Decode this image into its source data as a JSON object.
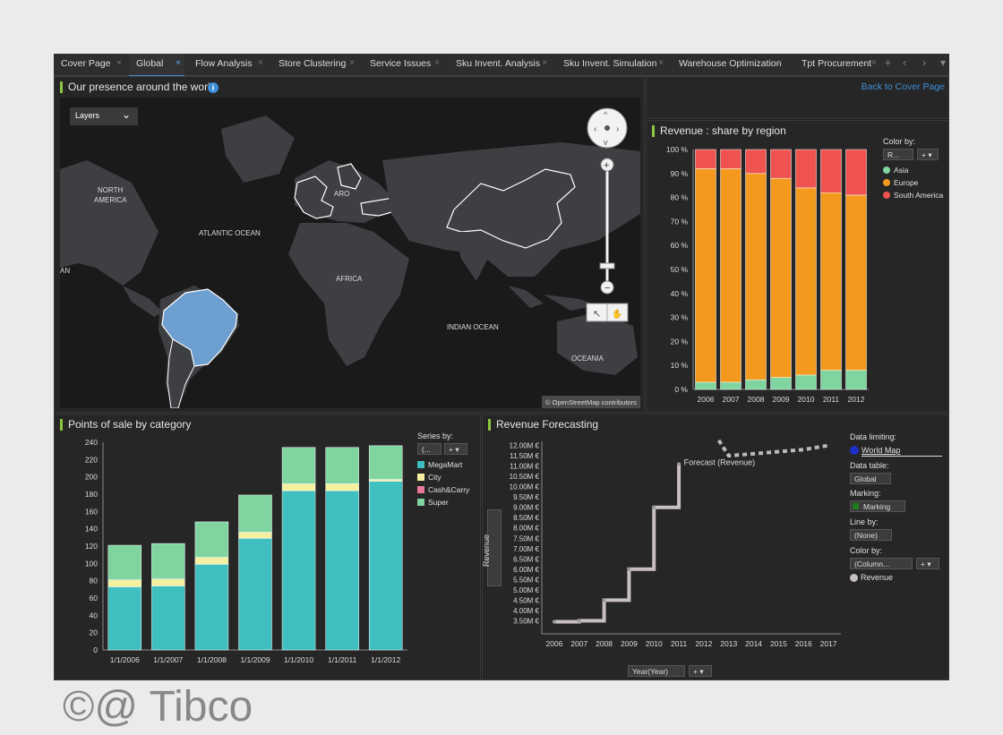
{
  "tabs": [
    {
      "label": "Cover Page",
      "x": 0,
      "w": 80
    },
    {
      "label": "Global",
      "x": 84,
      "w": 62,
      "active": true
    },
    {
      "label": "Flow Analysis",
      "x": 150,
      "w": 88
    },
    {
      "label": "Store Clustering",
      "x": 243,
      "w": 97
    },
    {
      "label": "Service Issues",
      "x": 345,
      "w": 90
    },
    {
      "label": "Sku Invent. Analysis",
      "x": 441,
      "w": 114
    },
    {
      "label": "Sku Invent. Simulation",
      "x": 561,
      "w": 124
    },
    {
      "label": "Warehouse Optimization",
      "x": 690,
      "w": 128
    },
    {
      "label": "Tpt Procurement",
      "x": 827,
      "w": 96
    }
  ],
  "map": {
    "title": "Our presence around the world",
    "layers_label": "Layers",
    "labels": [
      "NORTH",
      "AMERICA",
      "ATLANTIC OCEAN",
      "AFRICA",
      "INDIAN OCEAN",
      "OCEANIA",
      "ARO",
      "AN"
    ],
    "attribution": "© OpenStreetMap contributors",
    "colors": {
      "ocean": "#1a1a1a",
      "land": "#3d3f42",
      "highlight": "#6d9fd0"
    }
  },
  "back_link": "Back to Cover Page",
  "revenue_share": {
    "title": "Revenue : share by region",
    "color_by_label": "Color by:",
    "color_by_value": "R...",
    "legend": [
      {
        "name": "Asia",
        "color": "#7fd4a0"
      },
      {
        "name": "Europe",
        "color": "#f39a1e"
      },
      {
        "name": "South America",
        "color": "#ef5350"
      }
    ]
  },
  "pos": {
    "title": "Points of sale by category",
    "series_by_label": "Series by:",
    "series_by_value": "(...",
    "legend": [
      {
        "name": "MegaMart",
        "color": "#3fbfbf"
      },
      {
        "name": "City",
        "color": "#f5f0a0"
      },
      {
        "name": "Cash&Carry",
        "color": "#e8789a"
      },
      {
        "name": "Super",
        "color": "#7fd4a0"
      }
    ]
  },
  "forecast": {
    "title": "Revenue Forecasting",
    "y_axis_title": "Revenue",
    "x_selector": "Year(Year)",
    "forecast_label": "Forecast (Revenue)",
    "data_limiting_label": "Data limiting:",
    "data_limiting_value": "World Map",
    "data_table_label": "Data table:",
    "data_table_value": "Global",
    "marking_label": "Marking:",
    "marking_value": "Marking",
    "line_by_label": "Line by:",
    "line_by_value": "(None)",
    "color_by_label": "Color by:",
    "color_by_value": "(Column...",
    "legend_item": "Revenue"
  },
  "watermark": "©@ Tibco",
  "chart_data": [
    {
      "type": "bar",
      "title": "Revenue : share by region",
      "categories": [
        "2006",
        "2007",
        "2008",
        "2009",
        "2010",
        "2011",
        "2012"
      ],
      "y_ticks": [
        "0 %",
        "10 %",
        "20 %",
        "30 %",
        "40 %",
        "50 %",
        "60 %",
        "70 %",
        "80 %",
        "90 %",
        "100 %"
      ],
      "ylim": [
        0,
        100
      ],
      "stacked": true,
      "series": [
        {
          "name": "Asia",
          "values": [
            3,
            3,
            4,
            5,
            6,
            8,
            8
          ]
        },
        {
          "name": "Europe",
          "values": [
            89,
            89,
            86,
            83,
            78,
            74,
            73
          ]
        },
        {
          "name": "South America",
          "values": [
            8,
            8,
            10,
            12,
            16,
            18,
            19
          ]
        }
      ]
    },
    {
      "type": "bar",
      "title": "Points of sale by category",
      "categories": [
        "1/1/2006",
        "1/1/2007",
        "1/1/2008",
        "1/1/2009",
        "1/1/2010",
        "1/1/2011",
        "1/1/2012"
      ],
      "y_ticks": [
        "0",
        "20",
        "40",
        "60",
        "80",
        "100",
        "120",
        "140",
        "160",
        "180",
        "200",
        "220",
        "240"
      ],
      "ylim": [
        0,
        240
      ],
      "stacked": true,
      "series": [
        {
          "name": "MegaMart",
          "values": [
            73,
            74,
            99,
            129,
            184,
            184,
            195
          ]
        },
        {
          "name": "City",
          "values": [
            8,
            8,
            8,
            7,
            8,
            8,
            2
          ]
        },
        {
          "name": "Super",
          "values": [
            40,
            41,
            41,
            43,
            42,
            42,
            39
          ]
        }
      ]
    },
    {
      "type": "line",
      "title": "Revenue Forecasting",
      "x": [
        "2006",
        "2007",
        "2008",
        "2009",
        "2010",
        "2011",
        "2012",
        "2013",
        "2014",
        "2015",
        "2016",
        "2017"
      ],
      "y_ticks": [
        "3.50M €",
        "4.00M €",
        "4.50M €",
        "5.00M €",
        "5.50M €",
        "6.00M €",
        "6.50M €",
        "7.00M €",
        "7.50M €",
        "8.00M €",
        "8.50M €",
        "9.00M €",
        "9.50M €",
        "10.00M €",
        "10.50M €",
        "11.00M €",
        "11.50M €",
        "12.00M €"
      ],
      "series": [
        {
          "name": "Revenue",
          "points": [
            [
              2006,
              3.45
            ],
            [
              2007,
              3.5
            ],
            [
              2008,
              4.5
            ],
            [
              2009,
              6.0
            ],
            [
              2010,
              9.0
            ],
            [
              2011,
              11.1
            ]
          ]
        },
        {
          "name": "Forecast (Revenue)",
          "points": [
            [
              2012.6,
              12.25
            ],
            [
              2013,
              11.5
            ],
            [
              2014,
              11.6
            ],
            [
              2015,
              11.7
            ],
            [
              2016,
              11.8
            ],
            [
              2017,
              12.0
            ]
          ]
        }
      ]
    }
  ]
}
